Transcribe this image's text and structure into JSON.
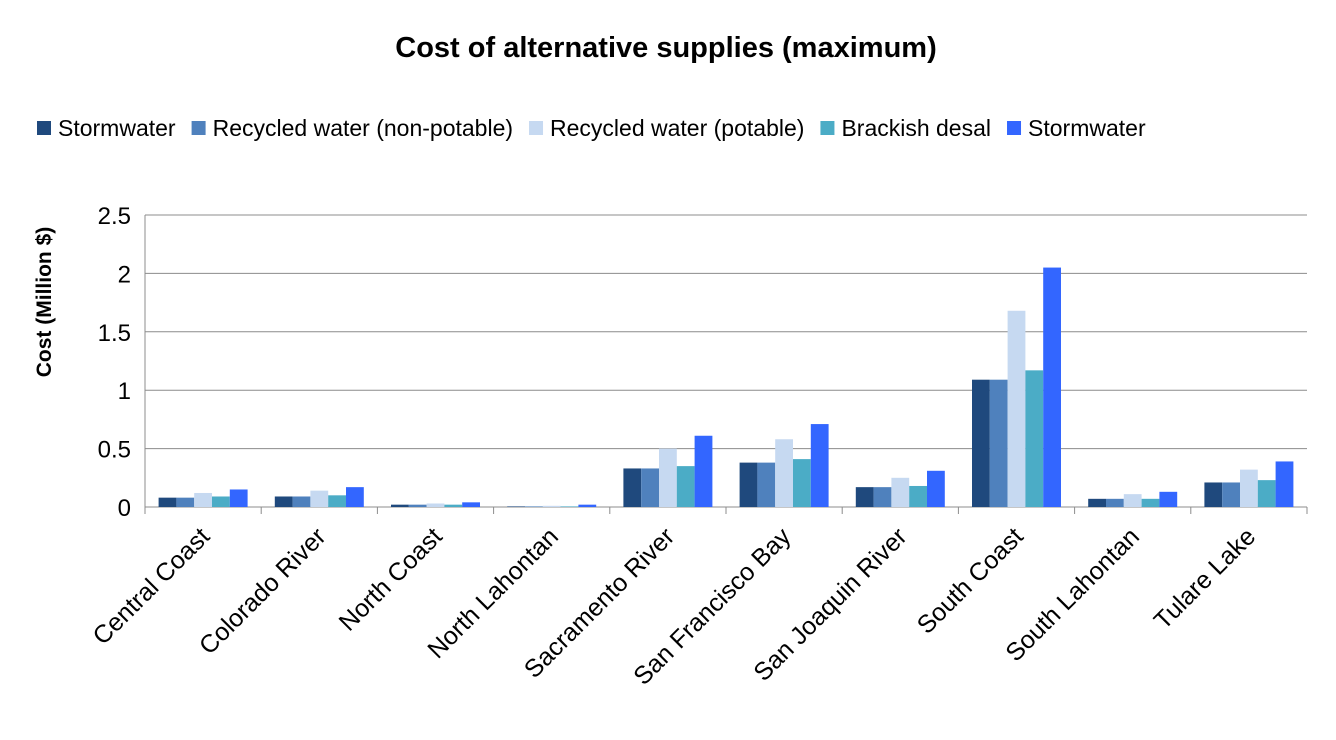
{
  "chart_data": {
    "type": "bar",
    "title": "Cost of alternative supplies (maximum)",
    "xlabel": "",
    "ylabel": "Cost (Million $)",
    "ylim": [
      0,
      2.5
    ],
    "yticks": [
      "0",
      "0.5",
      "1",
      "1.5",
      "2",
      "2.5"
    ],
    "grid": true,
    "legend_position": "top",
    "categories": [
      "Central Coast",
      "Colorado River",
      "North Coast",
      "North Lahontan",
      "Sacramento River",
      "San Francisco Bay",
      "San Joaquin River",
      "South Coast",
      "South Lahontan",
      "Tulare Lake"
    ],
    "series": [
      {
        "name": "Stormwater",
        "color": "#1f497d",
        "values": [
          0.08,
          0.09,
          0.02,
          0.005,
          0.33,
          0.38,
          0.17,
          1.09,
          0.07,
          0.21
        ]
      },
      {
        "name": "Recycled water (non-potable)",
        "color": "#4f81bd",
        "values": [
          0.08,
          0.09,
          0.02,
          0.005,
          0.33,
          0.38,
          0.17,
          1.09,
          0.07,
          0.21
        ]
      },
      {
        "name": "Recycled water (potable)",
        "color": "#c6d9f1",
        "values": [
          0.12,
          0.14,
          0.03,
          0.01,
          0.5,
          0.58,
          0.25,
          1.68,
          0.11,
          0.32
        ]
      },
      {
        "name": "Brackish desal",
        "color": "#4bacc6",
        "values": [
          0.09,
          0.1,
          0.02,
          0.005,
          0.35,
          0.41,
          0.18,
          1.17,
          0.07,
          0.23
        ]
      },
      {
        "name": "Stormwater",
        "color": "#3366ff",
        "values": [
          0.15,
          0.17,
          0.04,
          0.02,
          0.61,
          0.71,
          0.31,
          2.05,
          0.13,
          0.39
        ]
      }
    ]
  }
}
